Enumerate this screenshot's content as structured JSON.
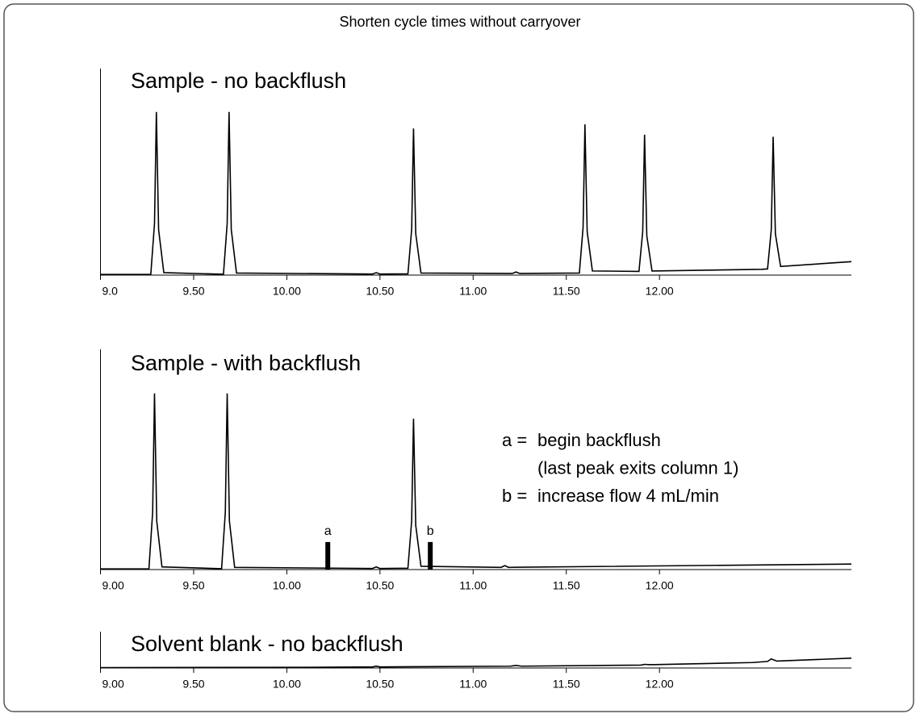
{
  "title": "Shorten cycle times without carryover",
  "chart_data": [
    {
      "type": "line",
      "title": "Sample - no backflush",
      "xlim": [
        9,
        13.03
      ],
      "ylim": [
        0,
        100
      ],
      "xticks": [
        {
          "value": 9,
          "label": "9.0"
        },
        {
          "value": 9.5,
          "label": "9.50"
        },
        {
          "value": 10,
          "label": "10.00"
        },
        {
          "value": 10.5,
          "label": "10.50"
        },
        {
          "value": 11,
          "label": "11.00"
        },
        {
          "value": 11.5,
          "label": "11.50"
        },
        {
          "value": 12,
          "label": "12.00"
        }
      ],
      "series": [
        {
          "color": "#000000",
          "x": [
            9.0,
            9.27,
            9.29,
            9.3,
            9.312,
            9.34,
            9.66,
            9.68,
            9.69,
            9.702,
            9.73,
            10.46,
            10.48,
            10.5,
            10.65,
            10.67,
            10.68,
            10.692,
            10.72,
            11.21,
            11.23,
            11.25,
            11.57,
            11.59,
            11.6,
            11.612,
            11.64,
            11.89,
            11.91,
            11.92,
            11.932,
            11.96,
            12.55,
            12.58,
            12.6,
            12.61,
            12.622,
            12.65,
            13.03
          ],
          "values": [
            0.3,
            0.3,
            25,
            79,
            22,
            1.2,
            0.4,
            25,
            79,
            22,
            1.0,
            0.5,
            1.2,
            0.5,
            0.6,
            22,
            71,
            20,
            1.0,
            0.8,
            1.5,
            0.8,
            1.0,
            23,
            73,
            21,
            2.0,
            1.8,
            21,
            68,
            19,
            2.0,
            2.8,
            3.0,
            22,
            67,
            20,
            4.2,
            6.5
          ]
        }
      ]
    },
    {
      "type": "line",
      "title": "Sample - with backflush",
      "xlim": [
        9,
        13.03
      ],
      "ylim": [
        0,
        100
      ],
      "xticks": [
        {
          "value": 9,
          "label": "9.00"
        },
        {
          "value": 9.5,
          "label": "9.50"
        },
        {
          "value": 10,
          "label": "10.00"
        },
        {
          "value": 10.5,
          "label": "10.50"
        },
        {
          "value": 11,
          "label": "11.00"
        },
        {
          "value": 11.5,
          "label": "11.50"
        },
        {
          "value": 12,
          "label": "12.00"
        }
      ],
      "series": [
        {
          "color": "#000000",
          "x": [
            9.0,
            9.26,
            9.28,
            9.29,
            9.302,
            9.33,
            9.65,
            9.67,
            9.68,
            9.692,
            9.72,
            10.46,
            10.48,
            10.5,
            10.65,
            10.67,
            10.68,
            10.692,
            10.72,
            11.15,
            11.17,
            11.19,
            13.03
          ],
          "values": [
            0.3,
            0.3,
            26,
            80,
            22,
            1.2,
            0.4,
            26,
            80,
            22,
            1.0,
            0.5,
            1.2,
            0.5,
            0.6,
            22,
            68.5,
            20,
            1.5,
            1.0,
            1.8,
            1.0,
            2.5
          ]
        }
      ],
      "markers": [
        {
          "label": "a",
          "x": 10.22,
          "height": 12.5,
          "key": "a =",
          "lines": [
            "begin backflush",
            "(last peak exits column 1)"
          ]
        },
        {
          "label": "b",
          "x": 10.77,
          "height": 12.5,
          "key": "b =",
          "lines": [
            "increase flow 4 mL/min"
          ]
        }
      ]
    },
    {
      "type": "line",
      "title": "Solvent blank - no backflush",
      "xlim": [
        9,
        13.03
      ],
      "ylim": [
        0,
        100
      ],
      "xticks": [
        {
          "value": 9,
          "label": "9.00"
        },
        {
          "value": 9.5,
          "label": "9.50"
        },
        {
          "value": 10,
          "label": "10.00"
        },
        {
          "value": 10.5,
          "label": "10.50"
        },
        {
          "value": 11,
          "label": "11.00"
        },
        {
          "value": 11.5,
          "label": "11.50"
        },
        {
          "value": 12,
          "label": "12.00"
        }
      ],
      "series": [
        {
          "color": "#000000",
          "x": [
            9.0,
            10.2,
            10.46,
            10.48,
            10.5,
            11.2,
            11.23,
            11.26,
            11.9,
            11.92,
            11.95,
            12.5,
            12.58,
            12.6,
            12.63,
            13.03
          ],
          "values": [
            1,
            2,
            3,
            5,
            3,
            5,
            7,
            5,
            8,
            10,
            9,
            15,
            18,
            25,
            19,
            27
          ]
        }
      ]
    }
  ]
}
